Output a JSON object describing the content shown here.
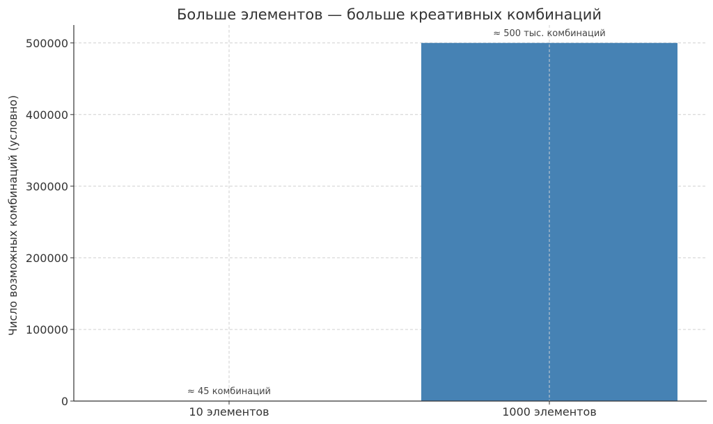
{
  "chart_data": {
    "type": "bar",
    "title": "Больше элементов — больше креативных комбинаций",
    "xlabel": "",
    "ylabel": "Число возможных комбинаций (условно)",
    "categories": [
      "10 элементов",
      "1000 элементов"
    ],
    "values": [
      45,
      500000
    ],
    "data_labels": [
      "≈ 45 комбинаций",
      "≈ 500 тыс. комбинаций"
    ],
    "ylim": [
      0,
      525000
    ],
    "yticks": [
      0,
      100000,
      200000,
      300000,
      400000,
      500000
    ],
    "ytick_labels": [
      "0",
      "100000",
      "200000",
      "300000",
      "400000",
      "500000"
    ],
    "grid": true,
    "bar_color": "#4682b4"
  }
}
